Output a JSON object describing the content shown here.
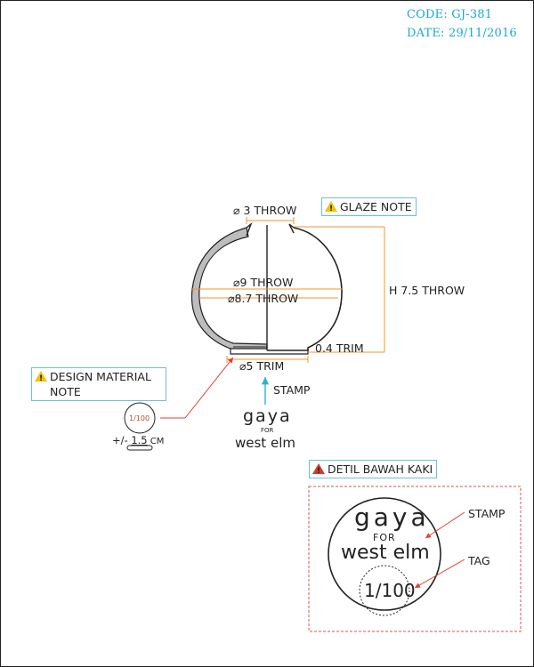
{
  "header": {
    "code": "CODE: GJ-381",
    "date": "DATE: 29/11/2016"
  },
  "dimensions": {
    "top_opening": "⌀ 3 THROW",
    "width_throw": "⌀9 THROW",
    "width_trim": "⌀8.7 THROW",
    "height": "H 7.5 THROW",
    "wall_trim": "0.4 TRIM",
    "base": "⌀5 TRIM"
  },
  "notes": {
    "glaze": "GLAZE NOTE",
    "design_material_line1": "DESIGN MATERIAL",
    "design_material_line2": "NOTE",
    "detil": "DETIL BAWAH KAKI"
  },
  "stamp_label": "STAMP",
  "brand": {
    "name": "gaya",
    "for": "FOR",
    "retailer": "west elm"
  },
  "tag": {
    "small": "1/100",
    "tolerance_prefix": "+/- ",
    "tolerance_value": "1.5",
    "tolerance_unit": " CM"
  },
  "detail": {
    "stamp_label": "STAMP",
    "tag_label": "TAG",
    "tag_text": "1/100"
  },
  "colors": {
    "header": "#1aa8d6",
    "dimension": "#f0962c",
    "arrow": "#e0402d",
    "detail_border": "#d9534f",
    "stamp_arrow": "#2ab0d8"
  }
}
